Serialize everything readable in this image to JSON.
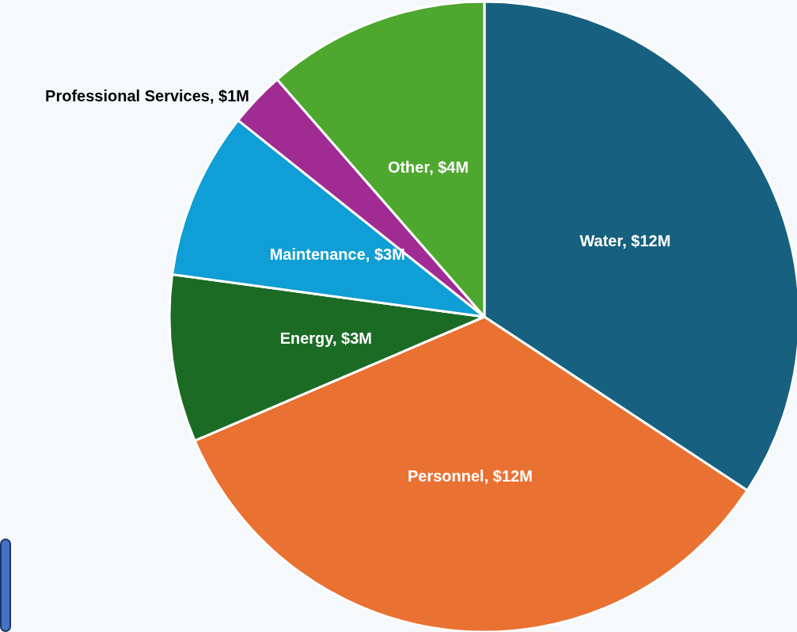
{
  "chart_data": {
    "type": "pie",
    "categories": [
      "Water",
      "Personnel",
      "Energy",
      "Maintenance",
      "Professional Services",
      "Other"
    ],
    "values": [
      12,
      12,
      3,
      3,
      1,
      4
    ],
    "value_labels": [
      "$12M",
      "$12M",
      "$3M",
      "$3M",
      "$1M",
      "$4M"
    ],
    "colors": [
      "#17607f",
      "#e97132",
      "#1b6b25",
      "#0f9ed5",
      "#a02b93",
      "#4ea72e"
    ],
    "legend": false
  }
}
